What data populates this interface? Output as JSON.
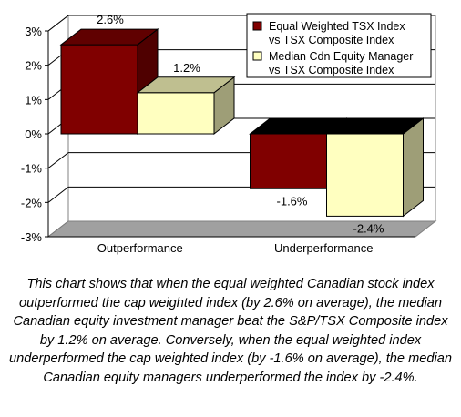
{
  "chart_data": {
    "type": "bar",
    "style": "3d-clustered-column",
    "categories": [
      "Outperformance",
      "Underperformance"
    ],
    "series": [
      {
        "name": "Equal Weighted TSX Index vs TSX Composite Index",
        "legend_lines": [
          "Equal Weighted TSX Index",
          "vs TSX Composite Index"
        ],
        "color": "#800000",
        "values": [
          2.6,
          -1.6
        ],
        "labels": [
          "2.6%",
          "-1.6%"
        ]
      },
      {
        "name": "Median Cdn Equity Manager vs TSX Composite Index",
        "legend_lines": [
          "Median Cdn Equity Manager",
          "vs TSX Composite Index"
        ],
        "color": "#FFFFC0",
        "values": [
          1.2,
          -2.4
        ],
        "labels": [
          "1.2%",
          "-2.4%"
        ]
      }
    ],
    "y_ticks": [
      "3%",
      "2%",
      "1%",
      "0%",
      "-1%",
      "-2%",
      "-3%"
    ],
    "ylim": [
      -3,
      3
    ],
    "grid": true,
    "legend_position": "top-right"
  },
  "caption": "This chart shows that when the equal weighted Canadian stock index outperformed the cap weighted index (by 2.6% on average), the median Canadian equity investment manager beat the S&P/TSX Composite index by 1.2% on average. Conversely, when the equal weighted index underperformed the cap weighted index (by -1.6% on average), the median Canadian equity managers underperformed the index by -2.4%."
}
